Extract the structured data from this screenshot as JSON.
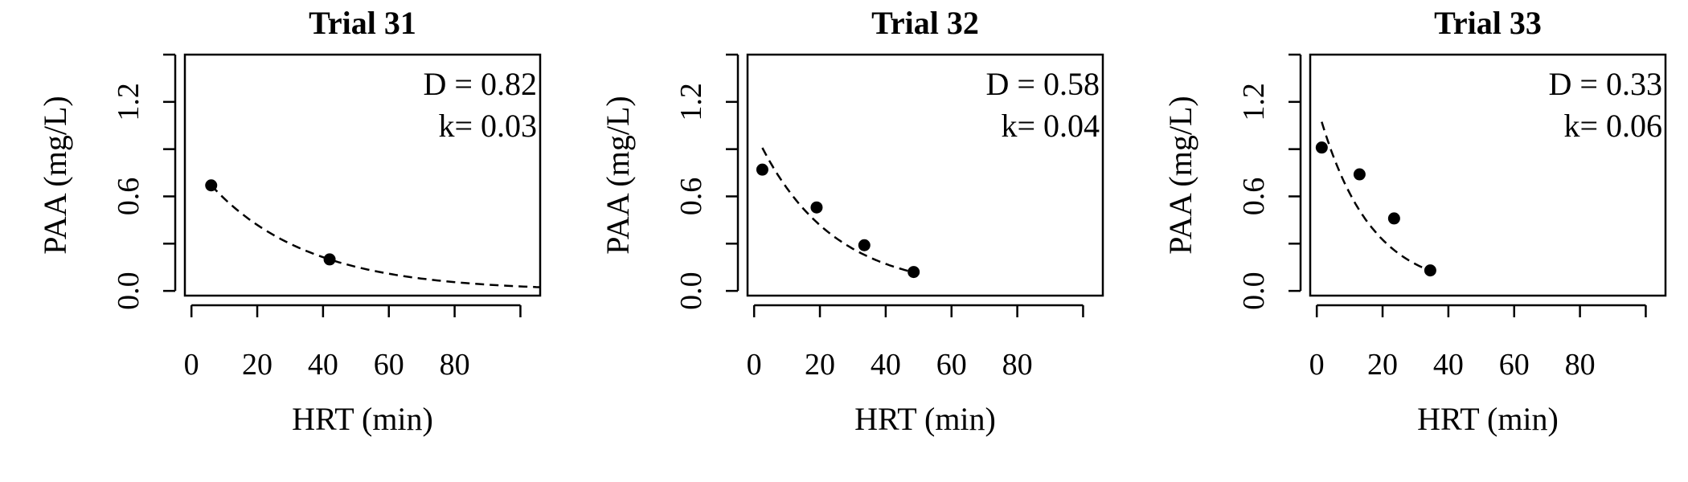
{
  "chart_data": [
    {
      "type": "scatter",
      "title": "Trial 31",
      "xlabel": "HRT (min)",
      "ylabel": "PAA (mg/L)",
      "xlim": [
        -2,
        106
      ],
      "ylim": [
        -0.03,
        1.5
      ],
      "xticks": [
        "0",
        "20",
        "40",
        "60",
        "80"
      ],
      "xtick_values": [
        0,
        20,
        40,
        60,
        80,
        100
      ],
      "yticks": [
        "0.0",
        "0.6",
        "1.2"
      ],
      "ytick_values": [
        0,
        0.3,
        0.6,
        0.9,
        1.2,
        1.5
      ],
      "annotations": [
        "D = 0.82",
        "k= 0.03"
      ],
      "fit": {
        "D": 0.82,
        "k": 0.03
      },
      "points": [
        {
          "x": 6,
          "y": 0.67
        },
        {
          "x": 42,
          "y": 0.2
        }
      ],
      "curve": {
        "style": "dashed",
        "x_range": [
          6,
          106
        ]
      }
    },
    {
      "type": "scatter",
      "title": "Trial 32",
      "xlabel": "HRT (min)",
      "ylabel": "PAA (mg/L)",
      "xlim": [
        -2,
        106
      ],
      "ylim": [
        -0.03,
        1.5
      ],
      "xticks": [
        "0",
        "20",
        "40",
        "60",
        "80"
      ],
      "xtick_values": [
        0,
        20,
        40,
        60,
        80,
        100
      ],
      "yticks": [
        "0.0",
        "0.6",
        "1.2"
      ],
      "ytick_values": [
        0,
        0.3,
        0.6,
        0.9,
        1.2,
        1.5
      ],
      "annotations": [
        "D = 0.58",
        "k= 0.04"
      ],
      "fit": {
        "D": 0.58,
        "k": 0.04
      },
      "points": [
        {
          "x": 2.5,
          "y": 0.77
        },
        {
          "x": 19,
          "y": 0.53
        },
        {
          "x": 33.5,
          "y": 0.29
        },
        {
          "x": 48.5,
          "y": 0.12
        }
      ],
      "curve": {
        "style": "dashed",
        "x_range": [
          2.5,
          48.5
        ]
      }
    },
    {
      "type": "scatter",
      "title": "Trial 33",
      "xlabel": "HRT (min)",
      "ylabel": "PAA (mg/L)",
      "xlim": [
        -2,
        106
      ],
      "ylim": [
        -0.03,
        1.5
      ],
      "xticks": [
        "0",
        "20",
        "40",
        "60",
        "80"
      ],
      "xtick_values": [
        0,
        20,
        40,
        60,
        80,
        100
      ],
      "yticks": [
        "0.0",
        "0.6",
        "1.2"
      ],
      "ytick_values": [
        0,
        0.3,
        0.6,
        0.9,
        1.2,
        1.5
      ],
      "annotations": [
        "D = 0.33",
        "k= 0.06"
      ],
      "fit": {
        "D": 0.33,
        "k": 0.06
      },
      "points": [
        {
          "x": 1.5,
          "y": 0.91
        },
        {
          "x": 13,
          "y": 0.74
        },
        {
          "x": 23.5,
          "y": 0.46
        },
        {
          "x": 34.5,
          "y": 0.13
        }
      ],
      "curve": {
        "style": "dashed",
        "x_range": [
          1.5,
          34.5
        ]
      }
    }
  ]
}
